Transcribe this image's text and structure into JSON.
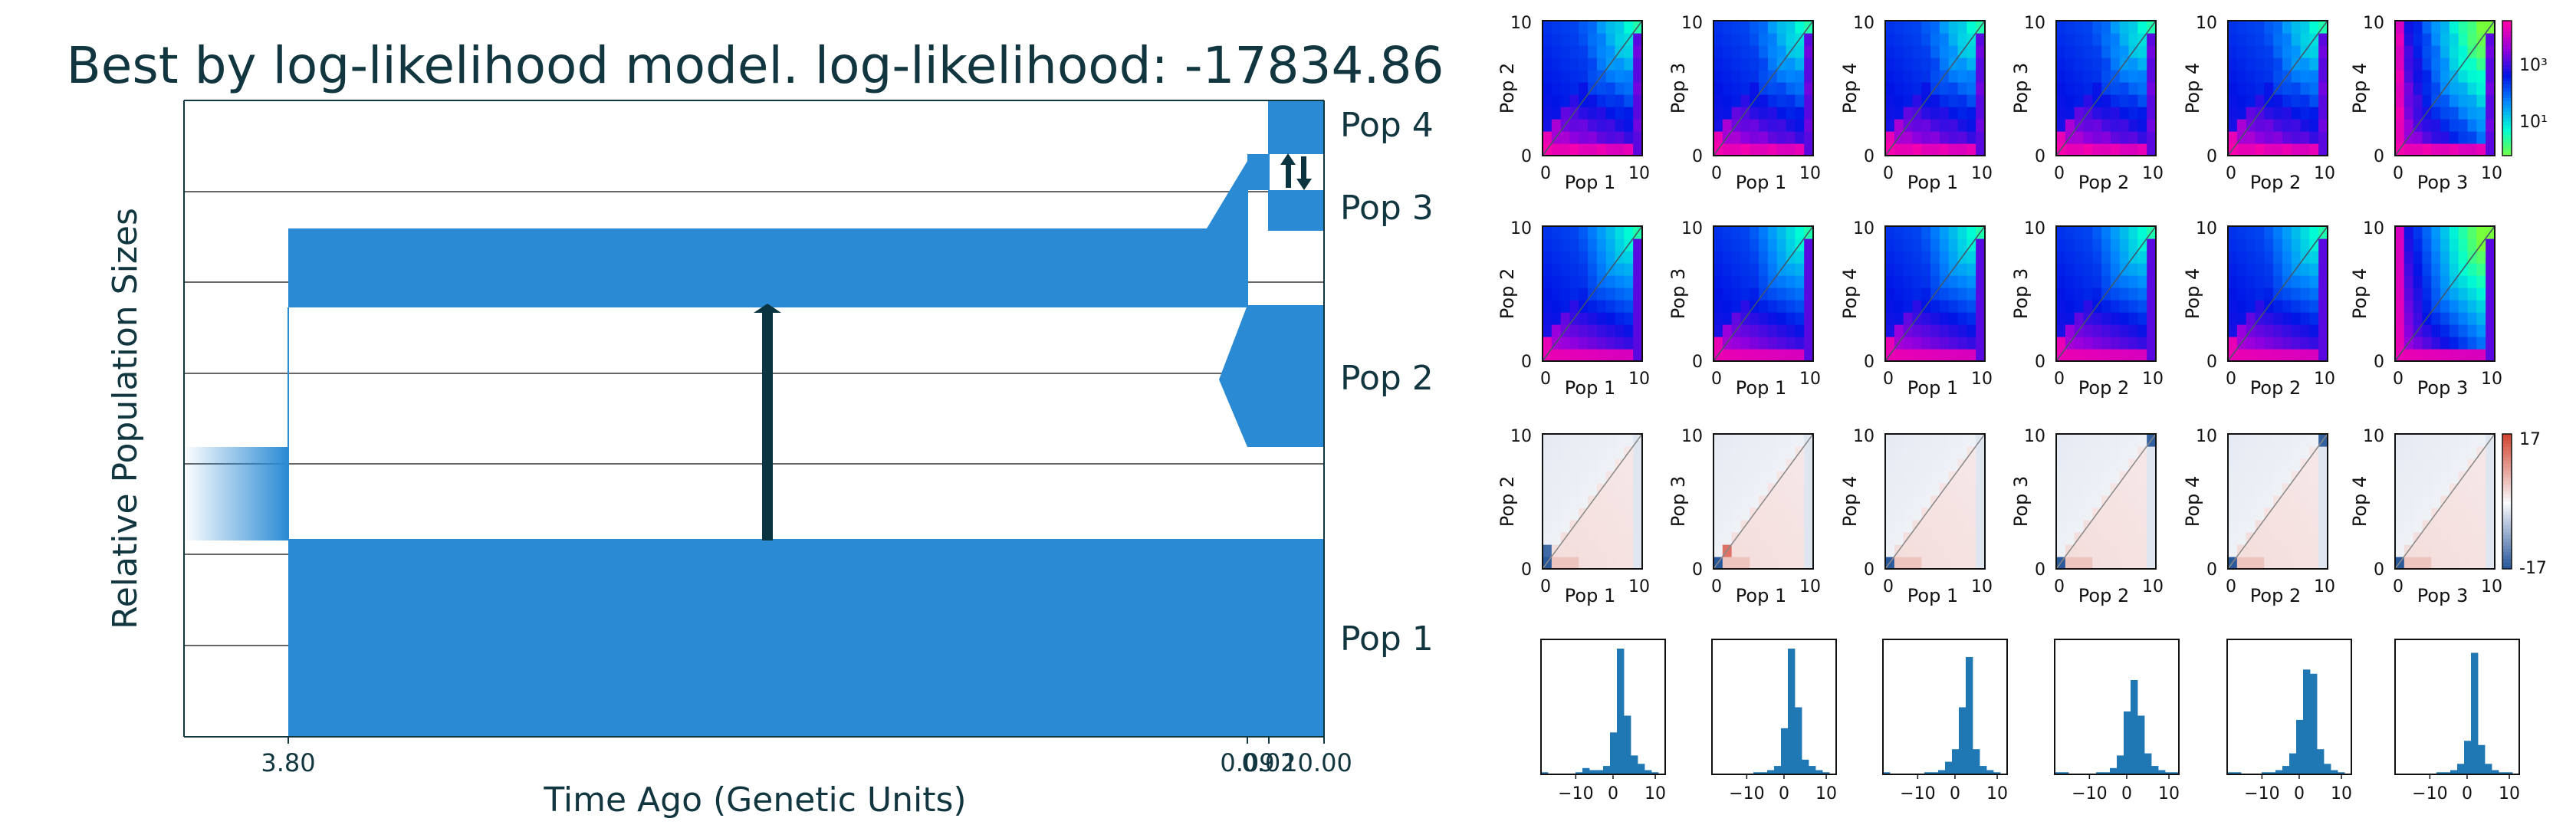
{
  "chart_data": [
    {
      "type": "area",
      "title": "Best by log-likelihood model. log-likelihood: -17834.86",
      "xlabel": "Time Ago (Genetic Units)",
      "ylabel": "Relative Population Sizes",
      "x_ticks": [
        "3.80",
        "0.09",
        "0.02",
        "10.00"
      ],
      "populations": [
        "Pop 1",
        "Pop 2",
        "Pop 3",
        "Pop 4"
      ],
      "pop_color": "#2a8ad4",
      "migration_arrow_color": "#0a3540",
      "grid": true
    },
    {
      "type": "heatmap",
      "name": "data-sfs",
      "x_ticks": [
        "0",
        "10"
      ],
      "y_ticks": [
        "0",
        "10"
      ],
      "panels": [
        {
          "xlabel": "Pop 1",
          "ylabel": "Pop 2"
        },
        {
          "xlabel": "Pop 1",
          "ylabel": "Pop 3"
        },
        {
          "xlabel": "Pop 1",
          "ylabel": "Pop 4"
        },
        {
          "xlabel": "Pop 2",
          "ylabel": "Pop 3"
        },
        {
          "xlabel": "Pop 2",
          "ylabel": "Pop 4"
        },
        {
          "xlabel": "Pop 3",
          "ylabel": "Pop 4"
        }
      ],
      "colorbar_ticks": [
        "10³",
        "10¹"
      ]
    },
    {
      "type": "heatmap",
      "name": "model-sfs",
      "x_ticks": [
        "0",
        "10"
      ],
      "y_ticks": [
        "0",
        "10"
      ],
      "panels": [
        {
          "xlabel": "Pop 1",
          "ylabel": "Pop 2"
        },
        {
          "xlabel": "Pop 1",
          "ylabel": "Pop 3"
        },
        {
          "xlabel": "Pop 1",
          "ylabel": "Pop 4"
        },
        {
          "xlabel": "Pop 2",
          "ylabel": "Pop 3"
        },
        {
          "xlabel": "Pop 2",
          "ylabel": "Pop 4"
        },
        {
          "xlabel": "Pop 3",
          "ylabel": "Pop 4"
        }
      ]
    },
    {
      "type": "heatmap",
      "name": "residuals",
      "x_ticks": [
        "0",
        "10"
      ],
      "y_ticks": [
        "0",
        "10"
      ],
      "panels": [
        {
          "xlabel": "Pop 1",
          "ylabel": "Pop 2"
        },
        {
          "xlabel": "Pop 1",
          "ylabel": "Pop 3"
        },
        {
          "xlabel": "Pop 1",
          "ylabel": "Pop 4"
        },
        {
          "xlabel": "Pop 2",
          "ylabel": "Pop 3"
        },
        {
          "xlabel": "Pop 2",
          "ylabel": "Pop 4"
        },
        {
          "xlabel": "Pop 3",
          "ylabel": "Pop 4"
        }
      ],
      "colorbar_ticks": [
        "17",
        "-17"
      ]
    },
    {
      "type": "bar",
      "name": "residual-histograms",
      "x_ticks": [
        "−10",
        "0",
        "10"
      ],
      "panels": [
        {
          "values": [
            1,
            0,
            0,
            0,
            0,
            1,
            3,
            2,
            2,
            4,
            20,
            60,
            28,
            9,
            5,
            2,
            1,
            0
          ]
        },
        {
          "values": [
            0,
            0,
            0,
            0,
            0,
            0,
            1,
            1,
            2,
            4,
            22,
            60,
            32,
            7,
            4,
            2,
            1,
            0
          ]
        },
        {
          "values": [
            1,
            0,
            0,
            0,
            0,
            0,
            1,
            1,
            2,
            6,
            12,
            32,
            56,
            12,
            4,
            2,
            1,
            0
          ]
        },
        {
          "values": [
            1,
            1,
            0,
            0,
            0,
            0,
            1,
            1,
            3,
            9,
            30,
            45,
            28,
            10,
            4,
            2,
            1,
            1
          ]
        },
        {
          "values": [
            1,
            1,
            0,
            0,
            0,
            1,
            1,
            2,
            4,
            10,
            26,
            50,
            48,
            12,
            5,
            2,
            1,
            0
          ]
        },
        {
          "values": [
            0,
            0,
            0,
            0,
            0,
            0,
            1,
            1,
            2,
            5,
            16,
            58,
            14,
            5,
            2,
            1,
            1,
            0
          ]
        }
      ]
    }
  ]
}
